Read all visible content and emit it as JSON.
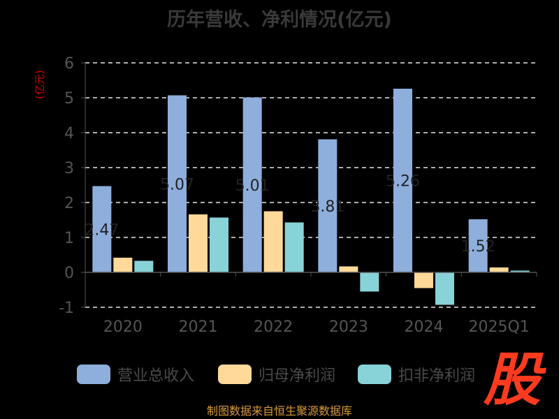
{
  "chart_data": {
    "type": "bar",
    "title": "历年营收、净利情况(亿元)",
    "ylabel": "(亿元)",
    "ylim": [
      -1,
      6
    ],
    "yticks": [
      -1,
      0,
      1,
      2,
      3,
      4,
      5,
      6
    ],
    "grid": true,
    "legend_position": "bottom",
    "categories": [
      "2020",
      "2021",
      "2022",
      "2023",
      "2024",
      "2025Q1"
    ],
    "series": [
      {
        "name": "营业总收入",
        "color": "#8eaedc",
        "values": [
          2.47,
          5.07,
          5.01,
          3.81,
          5.26,
          1.52
        ]
      },
      {
        "name": "归母净利润",
        "color": "#ffd99a",
        "values": [
          0.42,
          1.66,
          1.75,
          0.17,
          -0.45,
          0.14
        ]
      },
      {
        "name": "扣非净利润",
        "color": "#88d3d7",
        "values": [
          0.33,
          1.57,
          1.43,
          -0.55,
          -0.93,
          0.05
        ]
      }
    ],
    "data_labels": [
      "2.47",
      "5.07",
      "5.01",
      "3.81",
      "5.26",
      "1.52"
    ]
  },
  "watermark": "股",
  "source": "制图数据来自恒生聚源数据库"
}
